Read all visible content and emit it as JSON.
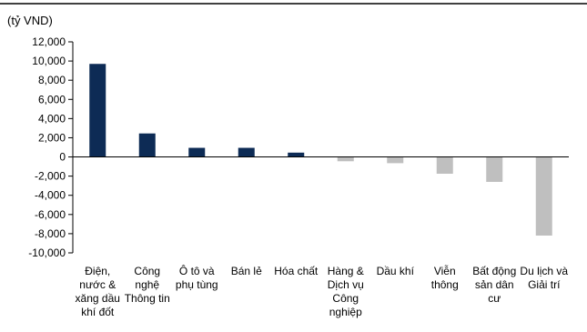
{
  "chart_data": {
    "type": "bar",
    "title": "",
    "xlabel": "",
    "ylabel": "(tỷ VND)",
    "ylim": [
      -10000,
      12000
    ],
    "yticks": [
      12000,
      10000,
      8000,
      6000,
      4000,
      2000,
      0,
      -2000,
      -4000,
      -6000,
      -8000,
      -10000
    ],
    "ytick_labels": [
      "12,000",
      "10,000",
      "8,000",
      "6,000",
      "4,000",
      "2,000",
      "0",
      "-2,000",
      "-4,000",
      "-6,000",
      "-8,000",
      "-10,000"
    ],
    "grid": false,
    "legend": "none",
    "colors": {
      "positive": "#0d2b55",
      "negative": "#bfbfbf",
      "axis": "#000000",
      "top_rule": "#000000"
    },
    "categories": [
      [
        "Điện,",
        "nước &",
        "xăng dầu",
        "khí đốt"
      ],
      [
        "Công",
        "nghệ",
        "Thông tin"
      ],
      [
        "Ô tô và",
        "phụ tùng"
      ],
      [
        "Bán lẻ"
      ],
      [
        "Hóa chất"
      ],
      [
        "Hàng &",
        "Dịch vụ",
        "Công",
        "nghiệp"
      ],
      [
        "Dầu khí"
      ],
      [
        "Viễn",
        "thông"
      ],
      [
        "Bất động",
        "sản dân",
        "cư"
      ],
      [
        "Du lịch và",
        "Giải trí"
      ]
    ],
    "values": [
      9700,
      2450,
      950,
      950,
      450,
      -450,
      -650,
      -1750,
      -2600,
      -8200
    ]
  }
}
